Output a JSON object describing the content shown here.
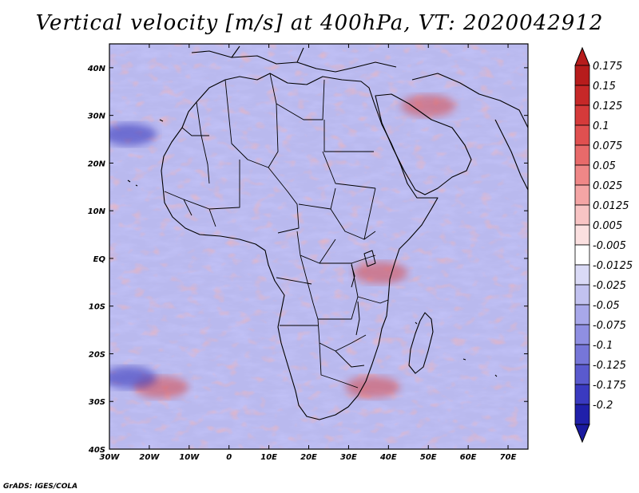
{
  "title": "Vertical velocity [m/s] at 400hPa, VT: 2020042912",
  "credit": "GrADS: IGES/COLA",
  "map": {
    "region": "Africa",
    "lon_range": [
      -30,
      75
    ],
    "lat_range": [
      -40,
      45
    ],
    "lon_ticks": [
      {
        "value": -30,
        "label": "30W"
      },
      {
        "value": -20,
        "label": "20W"
      },
      {
        "value": -10,
        "label": "10W"
      },
      {
        "value": 0,
        "label": "0"
      },
      {
        "value": 10,
        "label": "10E"
      },
      {
        "value": 20,
        "label": "20E"
      },
      {
        "value": 30,
        "label": "30E"
      },
      {
        "value": 40,
        "label": "40E"
      },
      {
        "value": 50,
        "label": "50E"
      },
      {
        "value": 60,
        "label": "60E"
      },
      {
        "value": 70,
        "label": "70E"
      }
    ],
    "lat_ticks": [
      {
        "value": 40,
        "label": "40N"
      },
      {
        "value": 30,
        "label": "30N"
      },
      {
        "value": 20,
        "label": "20N"
      },
      {
        "value": 10,
        "label": "10N"
      },
      {
        "value": 0,
        "label": "EQ"
      },
      {
        "value": -10,
        "label": "10S"
      },
      {
        "value": -20,
        "label": "20S"
      },
      {
        "value": -30,
        "label": "30S"
      },
      {
        "value": -40,
        "label": "40S"
      }
    ],
    "features": [
      {
        "name": "strong-ascent-itcz-east-africa",
        "lon": 38,
        "lat": -3,
        "sign": "up"
      },
      {
        "name": "ascent-band-se-atlantic",
        "lon": -17,
        "lat": -27,
        "sign": "up"
      },
      {
        "name": "descent-core-sw-atlantic",
        "lon": -25,
        "lat": -25,
        "sign": "down"
      },
      {
        "name": "descent-core-ne-atlantic",
        "lon": -25,
        "lat": 26,
        "sign": "down"
      },
      {
        "name": "ascent-middle-east",
        "lon": 50,
        "lat": 32,
        "sign": "up"
      },
      {
        "name": "ascent-mozambique-channel",
        "lon": 36,
        "lat": -27,
        "sign": "up"
      }
    ]
  },
  "colorbar": {
    "levels": [
      {
        "label": "0.175",
        "color": "#b71c1c"
      },
      {
        "label": "0.15",
        "color": "#c62828"
      },
      {
        "label": "0.125",
        "color": "#d53a3a"
      },
      {
        "label": "0.1",
        "color": "#e05050"
      },
      {
        "label": "0.075",
        "color": "#e86a6a"
      },
      {
        "label": "0.05",
        "color": "#ef8787"
      },
      {
        "label": "0.025",
        "color": "#f4a5a5"
      },
      {
        "label": "0.0125",
        "color": "#f8c4c4"
      },
      {
        "label": "0.005",
        "color": "#fbe0e0"
      },
      {
        "label": "-0.005",
        "color": "#ffffff"
      },
      {
        "label": "-0.0125",
        "color": "#dadaf6"
      },
      {
        "label": "-0.025",
        "color": "#c2c2f0"
      },
      {
        "label": "-0.05",
        "color": "#a8a8ea"
      },
      {
        "label": "-0.075",
        "color": "#8f8fe2"
      },
      {
        "label": "-0.1",
        "color": "#7676d8"
      },
      {
        "label": "-0.125",
        "color": "#5a5ace"
      },
      {
        "label": "-0.175",
        "color": "#3a3ac0"
      },
      {
        "label": "-0.2",
        "color": "#2020aa"
      }
    ],
    "top_arrow_color": "#b71c1c",
    "bottom_arrow_color": "#1a1aa0"
  }
}
